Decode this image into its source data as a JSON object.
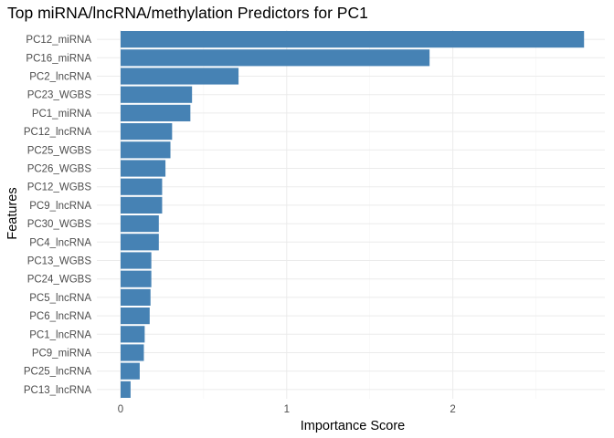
{
  "chart_data": {
    "type": "bar",
    "orientation": "horizontal",
    "title": "Top miRNA/lncRNA/methylation Predictors for PC1",
    "xlabel": "Importance Score",
    "ylabel": "Features",
    "xlim": [
      0,
      2.8
    ],
    "xticks": [
      0,
      1,
      2
    ],
    "xtick_labels": [
      "0",
      "1",
      "2"
    ],
    "grid": true,
    "bar_color": "#4682B4",
    "categories": [
      "PC12_miRNA",
      "PC16_miRNA",
      "PC2_lncRNA",
      "PC23_WGBS",
      "PC1_miRNA",
      "PC12_lncRNA",
      "PC25_WGBS",
      "PC26_WGBS",
      "PC12_WGBS",
      "PC9_lncRNA",
      "PC30_WGBS",
      "PC4_lncRNA",
      "PC13_WGBS",
      "PC24_WGBS",
      "PC5_lncRNA",
      "PC6_lncRNA",
      "PC1_lncRNA",
      "PC9_miRNA",
      "PC25_lncRNA",
      "PC13_lncRNA"
    ],
    "values": [
      2.79,
      1.86,
      0.71,
      0.43,
      0.42,
      0.31,
      0.3,
      0.27,
      0.25,
      0.25,
      0.23,
      0.23,
      0.185,
      0.185,
      0.18,
      0.175,
      0.145,
      0.14,
      0.115,
      0.06
    ]
  }
}
